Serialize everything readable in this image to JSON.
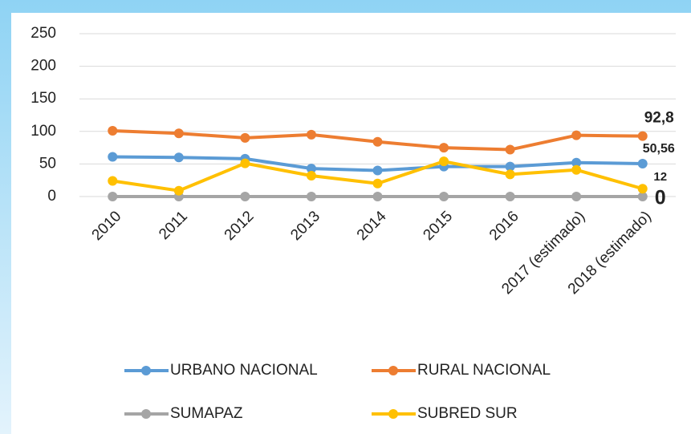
{
  "chart_data": {
    "type": "line",
    "categories": [
      "2010",
      "2011",
      "2012",
      "2013",
      "2014",
      "2015",
      "2016",
      "2017 (estimado)",
      "2018 (estimado)"
    ],
    "series": [
      {
        "name": "URBANO NACIONAL",
        "color": "#5b9bd5",
        "values": [
          61,
          60,
          58,
          43,
          40,
          46,
          46,
          52,
          50.56
        ],
        "value_labels": [
          null,
          null,
          null,
          null,
          null,
          null,
          null,
          null,
          "50,56"
        ]
      },
      {
        "name": "RURAL NACIONAL",
        "color": "#ed7d31",
        "values": [
          101,
          97,
          90,
          95,
          84,
          75,
          72,
          94,
          92.8
        ],
        "value_labels": [
          null,
          null,
          null,
          null,
          null,
          null,
          null,
          null,
          "92,8"
        ]
      },
      {
        "name": "SUMAPAZ",
        "color": "#a5a5a5",
        "values": [
          0,
          0,
          0,
          0,
          0,
          0,
          0,
          0,
          0
        ],
        "value_labels": [
          null,
          null,
          null,
          null,
          null,
          null,
          null,
          null,
          "0"
        ]
      },
      {
        "name": "SUBRED SUR",
        "color": "#ffc000",
        "values": [
          24,
          9,
          51,
          32,
          20,
          54,
          34,
          41,
          12
        ],
        "value_labels": [
          null,
          null,
          null,
          null,
          null,
          null,
          null,
          null,
          "12"
        ]
      }
    ],
    "ylim": [
      0,
      250
    ],
    "yticks": [
      0,
      50,
      100,
      150,
      200,
      250
    ],
    "grid": true
  }
}
